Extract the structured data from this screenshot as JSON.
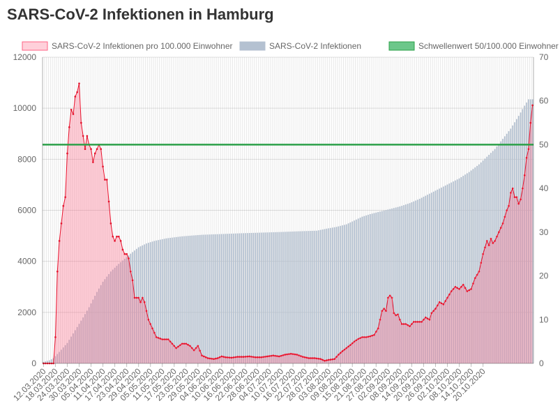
{
  "page": {
    "title": "SARS-CoV-2 Infektionen in Hamburg"
  },
  "chart_data": {
    "type": "bar+line",
    "title": "SARS-CoV-2 Infektionen in Hamburg",
    "legend": {
      "placement": "top-right",
      "items": [
        {
          "label": "SARS-CoV-2 Infektionen pro 100.000 Einwohner",
          "color": "#ff6384",
          "fill": "rgba(255,99,132,0.3)"
        },
        {
          "label": "SARS-CoV-2 Infektionen",
          "color": "#b4c1d1"
        },
        {
          "label": "Schwellenwert 50/100.000 Einwohner",
          "color": "#2ca049",
          "fill": "#6cc78a"
        }
      ]
    },
    "start_date": "12.03.2020",
    "x_tick_labels": [
      "12.03.2020",
      "18.03.2020",
      "24.03.2020",
      "30.03.2020",
      "05.04.2020",
      "11.04.2020",
      "17.04.2020",
      "23.04.2020",
      "29.04.2020",
      "05.05.2020",
      "11.05.2020",
      "17.05.2020",
      "23.05.2020",
      "29.05.2020",
      "04.06.2020",
      "10.06.2020",
      "16.06.2020",
      "22.06.2020",
      "28.06.2020",
      "04.07.2020",
      "10.07.2020",
      "16.07.2020",
      "22.07.2020",
      "28.07.2020",
      "03.08.2020",
      "09.08.2020",
      "15.08.2020",
      "21.08.2020",
      "27.08.2020",
      "02.09.2020",
      "08.09.2020",
      "14.09.2020",
      "20.09.2020",
      "26.09.2020",
      "02.10.2020",
      "08.10.2020",
      "14.10.2020",
      "20.10.2020"
    ],
    "y_left": {
      "min": 0,
      "max": 12000,
      "ticks": [
        0,
        2000,
        4000,
        6000,
        8000,
        10000,
        12000
      ]
    },
    "y_right": {
      "min": 0,
      "max": 70,
      "ticks": [
        0,
        10,
        20,
        30,
        40,
        50,
        60,
        70
      ]
    },
    "threshold": 50,
    "grid": true,
    "series": [
      {
        "name": "SARS-CoV-2 Infektionen",
        "type": "bar",
        "axis": "left",
        "keyframes": [
          [
            0,
            60
          ],
          [
            3,
            120
          ],
          [
            5,
            200
          ],
          [
            8,
            450
          ],
          [
            12,
            800
          ],
          [
            16,
            1300
          ],
          [
            20,
            1800
          ],
          [
            23,
            2200
          ],
          [
            27,
            2800
          ],
          [
            30,
            3200
          ],
          [
            34,
            3600
          ],
          [
            38,
            3900
          ],
          [
            41,
            4100
          ],
          [
            44,
            4300
          ],
          [
            48,
            4550
          ],
          [
            52,
            4700
          ],
          [
            56,
            4800
          ],
          [
            62,
            4900
          ],
          [
            70,
            4980
          ],
          [
            80,
            5040
          ],
          [
            100,
            5100
          ],
          [
            120,
            5150
          ],
          [
            130,
            5180
          ],
          [
            138,
            5200
          ],
          [
            143,
            5280
          ],
          [
            148,
            5350
          ],
          [
            153,
            5450
          ],
          [
            157,
            5600
          ],
          [
            161,
            5750
          ],
          [
            165,
            5850
          ],
          [
            170,
            5950
          ],
          [
            175,
            6050
          ],
          [
            180,
            6150
          ],
          [
            185,
            6280
          ],
          [
            190,
            6450
          ],
          [
            195,
            6650
          ],
          [
            200,
            6850
          ],
          [
            205,
            7050
          ],
          [
            210,
            7250
          ],
          [
            215,
            7500
          ],
          [
            220,
            7800
          ],
          [
            224,
            8100
          ],
          [
            228,
            8400
          ],
          [
            232,
            8800
          ],
          [
            236,
            9200
          ],
          [
            240,
            9700
          ],
          [
            243,
            10100
          ],
          [
            245,
            10350
          ]
        ]
      },
      {
        "name": "SARS-CoV-2 Infektionen pro 100.000 Einwohner",
        "type": "line",
        "axis": "right",
        "keyframes": [
          [
            0,
            0
          ],
          [
            5,
            0
          ],
          [
            6,
            6
          ],
          [
            7,
            21
          ],
          [
            8,
            28
          ],
          [
            9,
            32
          ],
          [
            10,
            36
          ],
          [
            11,
            38
          ],
          [
            12,
            48
          ],
          [
            13,
            54
          ],
          [
            14,
            58
          ],
          [
            15,
            57
          ],
          [
            16,
            61
          ],
          [
            17,
            62
          ],
          [
            18,
            64
          ],
          [
            19,
            55
          ],
          [
            20,
            52
          ],
          [
            21,
            49
          ],
          [
            22,
            52
          ],
          [
            23,
            50
          ],
          [
            24,
            49
          ],
          [
            25,
            46
          ],
          [
            26,
            48
          ],
          [
            27,
            49
          ],
          [
            28,
            50
          ],
          [
            29,
            49
          ],
          [
            30,
            45
          ],
          [
            31,
            42
          ],
          [
            32,
            42
          ],
          [
            33,
            37
          ],
          [
            34,
            32
          ],
          [
            35,
            29
          ],
          [
            36,
            28
          ],
          [
            37,
            29
          ],
          [
            38,
            29
          ],
          [
            39,
            28
          ],
          [
            40,
            26
          ],
          [
            41,
            25
          ],
          [
            42,
            25
          ],
          [
            43,
            24
          ],
          [
            44,
            21
          ],
          [
            45,
            19
          ],
          [
            46,
            15
          ],
          [
            47,
            15
          ],
          [
            48,
            15
          ],
          [
            49,
            14
          ],
          [
            50,
            15
          ],
          [
            51,
            14
          ],
          [
            52,
            12
          ],
          [
            53,
            10
          ],
          [
            55,
            8
          ],
          [
            57,
            6
          ],
          [
            60,
            5.5
          ],
          [
            63,
            5.5
          ],
          [
            65,
            4.5
          ],
          [
            67,
            3.5
          ],
          [
            70,
            4.5
          ],
          [
            72,
            4.5
          ],
          [
            74,
            4
          ],
          [
            76,
            3
          ],
          [
            78,
            4
          ],
          [
            80,
            1.8
          ],
          [
            83,
            1.2
          ],
          [
            86,
            1
          ],
          [
            88,
            1.2
          ],
          [
            90,
            1.6
          ],
          [
            92,
            1.4
          ],
          [
            95,
            1.3
          ],
          [
            98,
            1.5
          ],
          [
            101,
            1.5
          ],
          [
            104,
            1.6
          ],
          [
            107,
            1.4
          ],
          [
            110,
            1.4
          ],
          [
            113,
            1.6
          ],
          [
            116,
            1.8
          ],
          [
            119,
            1.6
          ],
          [
            122,
            2
          ],
          [
            125,
            2.2
          ],
          [
            128,
            2
          ],
          [
            131,
            1.5
          ],
          [
            134,
            1.2
          ],
          [
            137,
            1.2
          ],
          [
            140,
            1
          ],
          [
            142,
            0.6
          ],
          [
            144,
            0.8
          ],
          [
            147,
            1
          ],
          [
            149,
            2
          ],
          [
            151,
            2.8
          ],
          [
            153,
            3.5
          ],
          [
            155,
            4.2
          ],
          [
            157,
            5
          ],
          [
            159,
            5.6
          ],
          [
            161,
            6
          ],
          [
            163,
            6
          ],
          [
            165,
            6.2
          ],
          [
            167,
            6.5
          ],
          [
            169,
            8
          ],
          [
            170,
            10
          ],
          [
            171,
            12
          ],
          [
            172,
            12.5
          ],
          [
            173,
            12
          ],
          [
            174,
            15
          ],
          [
            175,
            15.5
          ],
          [
            176,
            15
          ],
          [
            177,
            11.5
          ],
          [
            178,
            11
          ],
          [
            179,
            11.2
          ],
          [
            180,
            10
          ],
          [
            181,
            9
          ],
          [
            183,
            9
          ],
          [
            185,
            8.5
          ],
          [
            187,
            9.5
          ],
          [
            189,
            9.5
          ],
          [
            191,
            9.5
          ],
          [
            193,
            10.5
          ],
          [
            195,
            10
          ],
          [
            196,
            11.5
          ],
          [
            198,
            12.5
          ],
          [
            200,
            14
          ],
          [
            202,
            13.5
          ],
          [
            204,
            15
          ],
          [
            206,
            16.5
          ],
          [
            208,
            17.5
          ],
          [
            210,
            17
          ],
          [
            212,
            18
          ],
          [
            214,
            16.5
          ],
          [
            216,
            17
          ],
          [
            218,
            19.5
          ],
          [
            220,
            21
          ],
          [
            222,
            25
          ],
          [
            224,
            28
          ],
          [
            225,
            27
          ],
          [
            226,
            28.5
          ],
          [
            227,
            27.5
          ],
          [
            228,
            28
          ],
          [
            230,
            30
          ],
          [
            232,
            32
          ],
          [
            234,
            35
          ],
          [
            235,
            36
          ],
          [
            236,
            39
          ],
          [
            237,
            40
          ],
          [
            238,
            38
          ],
          [
            239,
            38
          ],
          [
            240,
            36.5
          ],
          [
            241,
            37.5
          ],
          [
            242,
            40
          ],
          [
            243,
            43
          ],
          [
            244,
            47
          ],
          [
            245,
            49
          ],
          [
            246,
            55
          ],
          [
            247,
            59
          ]
        ]
      }
    ]
  }
}
